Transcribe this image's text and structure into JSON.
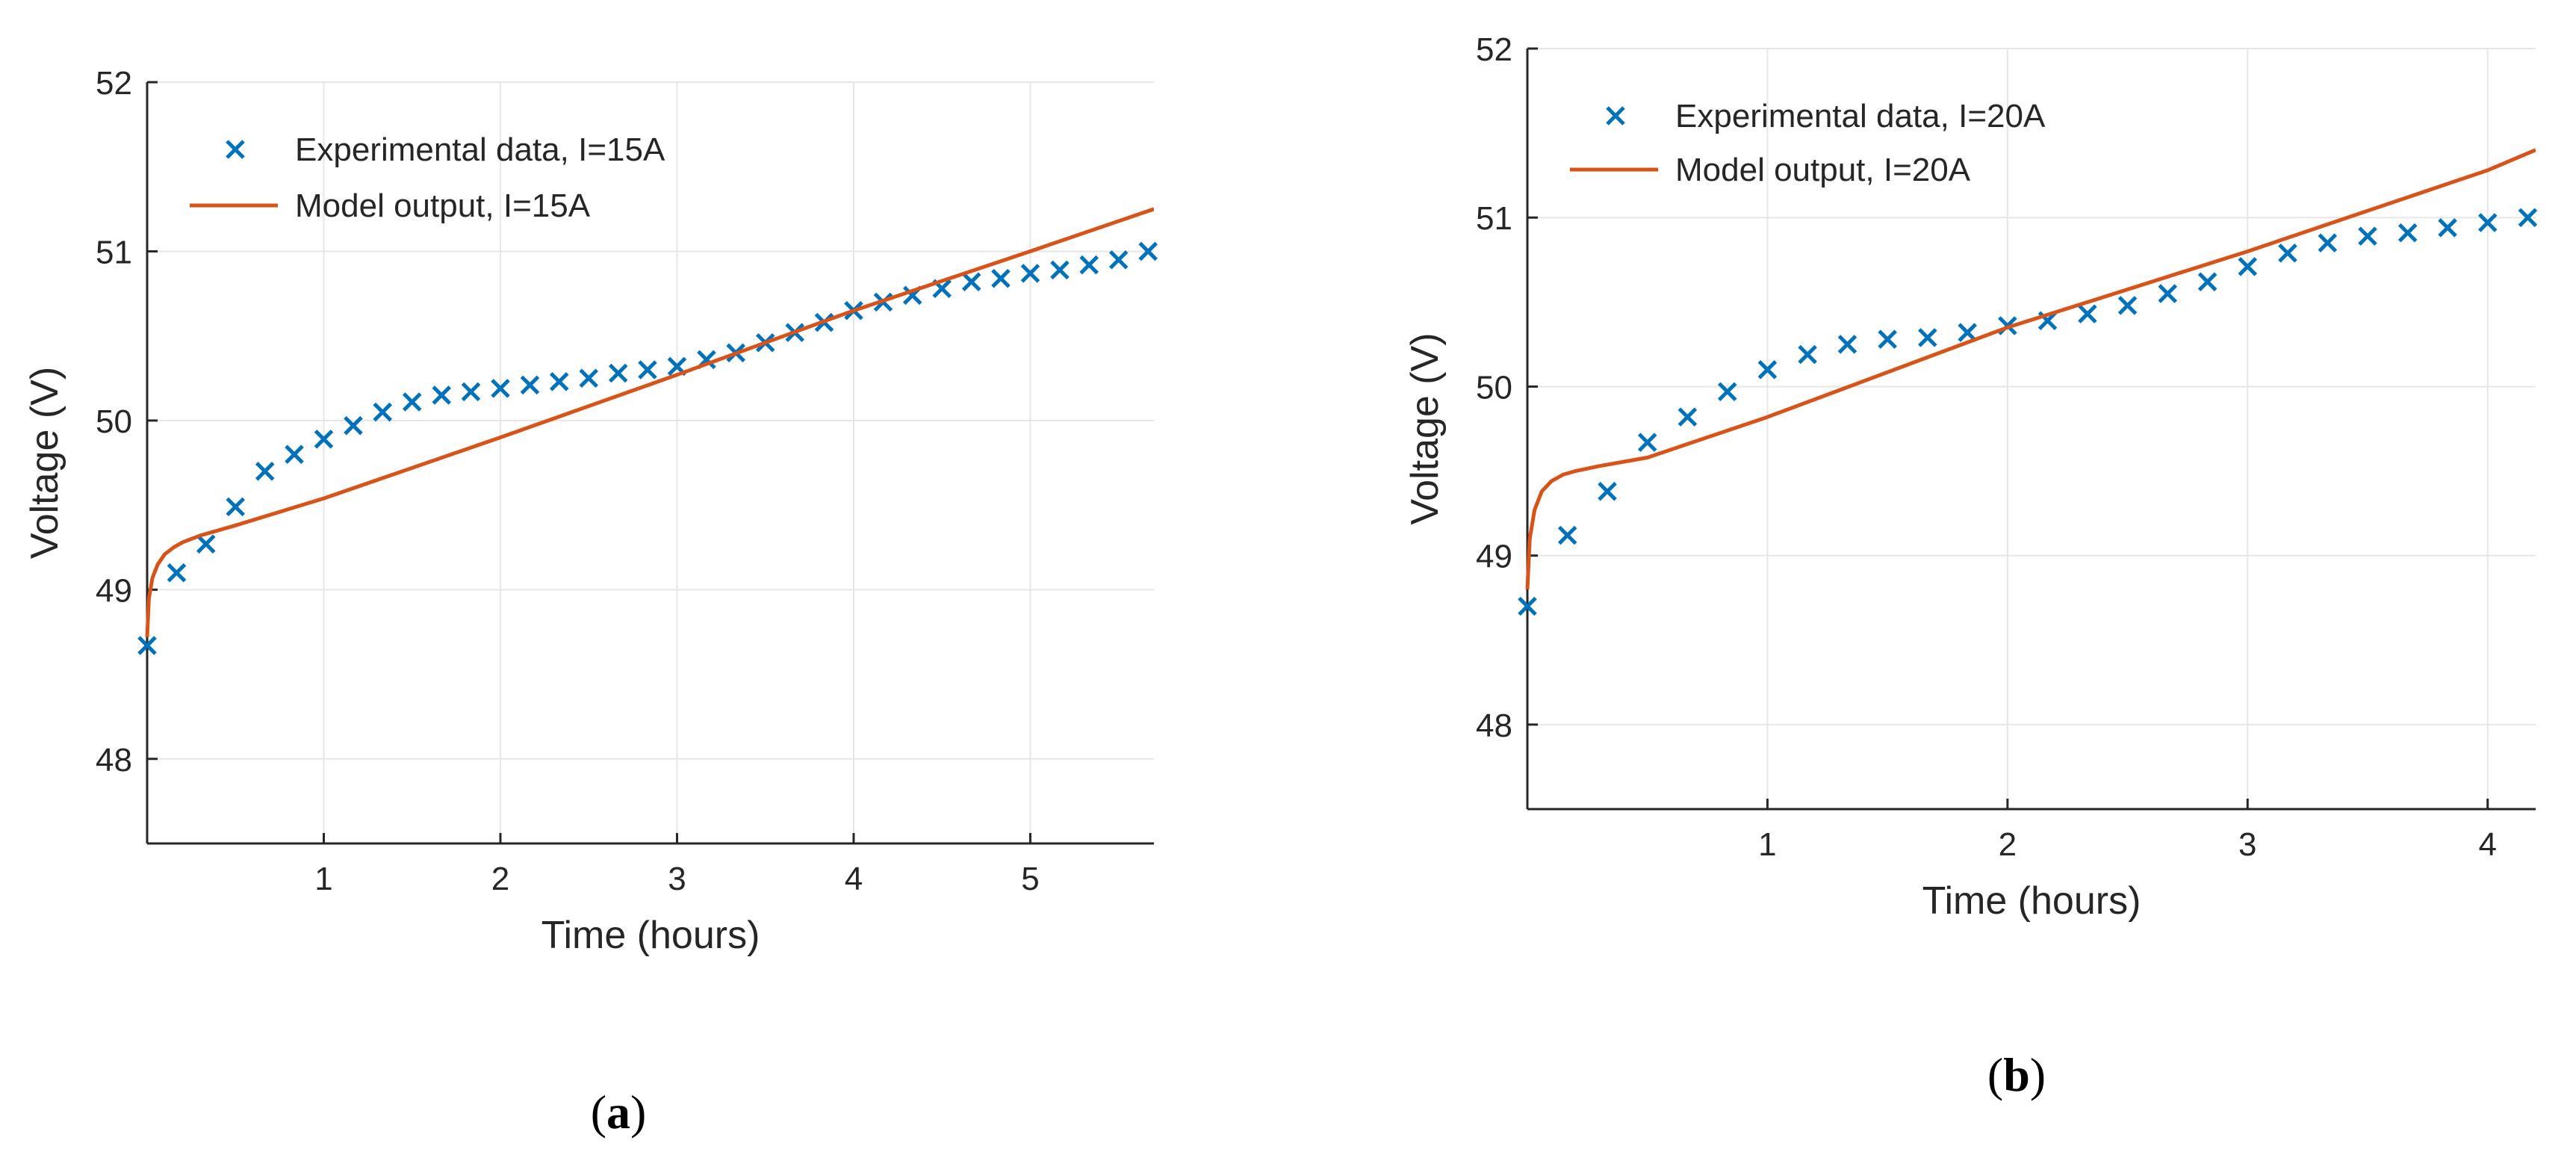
{
  "colors": {
    "experimental": "#0072BD",
    "model": "#D95319",
    "grid": "#e6e6e6",
    "axis": "#262626"
  },
  "chart_data": [
    {
      "type": "line",
      "panel": "a",
      "caption": "a",
      "xlabel": "Time (hours)",
      "ylabel": "Voltage (V)",
      "xlim": [
        0,
        5.7
      ],
      "ylim": [
        47.5,
        52
      ],
      "xticks": [
        1,
        2,
        3,
        4,
        5
      ],
      "yticks": [
        48,
        49,
        50,
        51,
        52
      ],
      "grid": true,
      "legend_position": "top-left",
      "series": [
        {
          "name": "Experimental data, I=15A",
          "style": "markers-x",
          "x": [
            0,
            0.167,
            0.333,
            0.5,
            0.667,
            0.833,
            1.0,
            1.167,
            1.333,
            1.5,
            1.667,
            1.833,
            2.0,
            2.167,
            2.333,
            2.5,
            2.667,
            2.833,
            3.0,
            3.167,
            3.333,
            3.5,
            3.667,
            3.833,
            4.0,
            4.167,
            4.333,
            4.5,
            4.667,
            4.833,
            5.0,
            5.167,
            5.333,
            5.5,
            5.667
          ],
          "y": [
            48.67,
            49.1,
            49.27,
            49.49,
            49.7,
            49.8,
            49.89,
            49.97,
            50.05,
            50.11,
            50.15,
            50.17,
            50.19,
            50.21,
            50.23,
            50.25,
            50.28,
            50.3,
            50.32,
            50.36,
            50.4,
            50.46,
            50.52,
            50.58,
            50.65,
            50.7,
            50.74,
            50.78,
            50.82,
            50.84,
            50.87,
            50.89,
            50.92,
            50.95,
            51.0
          ]
        },
        {
          "name": "Model output, I=15A",
          "style": "line",
          "x": [
            0,
            0.01,
            0.03,
            0.06,
            0.1,
            0.15,
            0.2,
            0.3,
            0.5,
            1.0,
            2.0,
            3.0,
            4.0,
            5.0,
            5.7
          ],
          "y": [
            48.72,
            48.95,
            49.07,
            49.15,
            49.21,
            49.25,
            49.28,
            49.32,
            49.38,
            49.54,
            49.9,
            50.27,
            50.65,
            51.0,
            51.25
          ]
        }
      ]
    },
    {
      "type": "line",
      "panel": "b",
      "caption": "b",
      "xlabel": "Time (hours)",
      "ylabel": "Voltage (V)",
      "xlim": [
        0,
        4.2
      ],
      "ylim": [
        47.5,
        52
      ],
      "xticks": [
        1,
        2,
        3,
        4
      ],
      "yticks": [
        48,
        49,
        50,
        51,
        52
      ],
      "grid": true,
      "legend_position": "top-left",
      "series": [
        {
          "name": "Experimental data, I=20A",
          "style": "markers-x",
          "x": [
            0,
            0.167,
            0.333,
            0.5,
            0.667,
            0.833,
            1.0,
            1.167,
            1.333,
            1.5,
            1.667,
            1.833,
            2.0,
            2.167,
            2.333,
            2.5,
            2.667,
            2.833,
            3.0,
            3.167,
            3.333,
            3.5,
            3.667,
            3.833,
            4.0,
            4.167
          ],
          "y": [
            48.7,
            49.12,
            49.38,
            49.67,
            49.82,
            49.97,
            50.1,
            50.19,
            50.25,
            50.28,
            50.29,
            50.32,
            50.36,
            50.39,
            50.43,
            50.48,
            50.55,
            50.62,
            50.71,
            50.79,
            50.85,
            50.89,
            50.91,
            50.94,
            50.97,
            51.0
          ]
        },
        {
          "name": "Model output, I=20A",
          "style": "line",
          "x": [
            0,
            0.01,
            0.03,
            0.06,
            0.1,
            0.15,
            0.2,
            0.3,
            0.5,
            1.0,
            2.0,
            3.0,
            4.0,
            4.2
          ],
          "y": [
            48.8,
            49.1,
            49.27,
            49.38,
            49.44,
            49.48,
            49.5,
            49.53,
            49.58,
            49.82,
            50.35,
            50.8,
            51.28,
            51.4
          ]
        }
      ]
    }
  ]
}
